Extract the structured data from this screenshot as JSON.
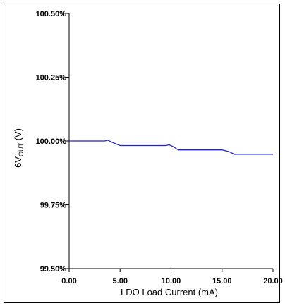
{
  "chart_data": {
    "type": "line",
    "xlabel": "LDO Load Current  (mA)",
    "ylabel": {
      "prefix": "6V",
      "subscript": "OUT",
      "suffix": "  (V)"
    },
    "xlim": [
      0,
      20
    ],
    "ylim": [
      99.5,
      100.5
    ],
    "x_ticks": [
      "0.00",
      "5.00",
      "10.00",
      "15.00",
      "20.00"
    ],
    "x_tick_values": [
      0,
      5,
      10,
      15,
      20
    ],
    "y_ticks": [
      "100.50%",
      "100.25%",
      "100.00%",
      "99.75%",
      "99.50%"
    ],
    "y_tick_values": [
      100.5,
      100.25,
      100.0,
      99.75,
      99.5
    ],
    "grid": false,
    "series": [
      {
        "color": "#1f1fd6",
        "x": [
          0,
          3.5,
          3.8,
          4.2,
          5.0,
          5.3,
          9.5,
          9.8,
          10.2,
          10.7,
          11.0,
          15.0,
          15.3,
          15.7,
          16.2,
          20.0
        ],
        "y": [
          100.0,
          100.0,
          100.003,
          99.995,
          99.982,
          99.982,
          99.982,
          99.985,
          99.978,
          99.965,
          99.965,
          99.965,
          99.962,
          99.958,
          99.948,
          99.948
        ]
      }
    ]
  }
}
